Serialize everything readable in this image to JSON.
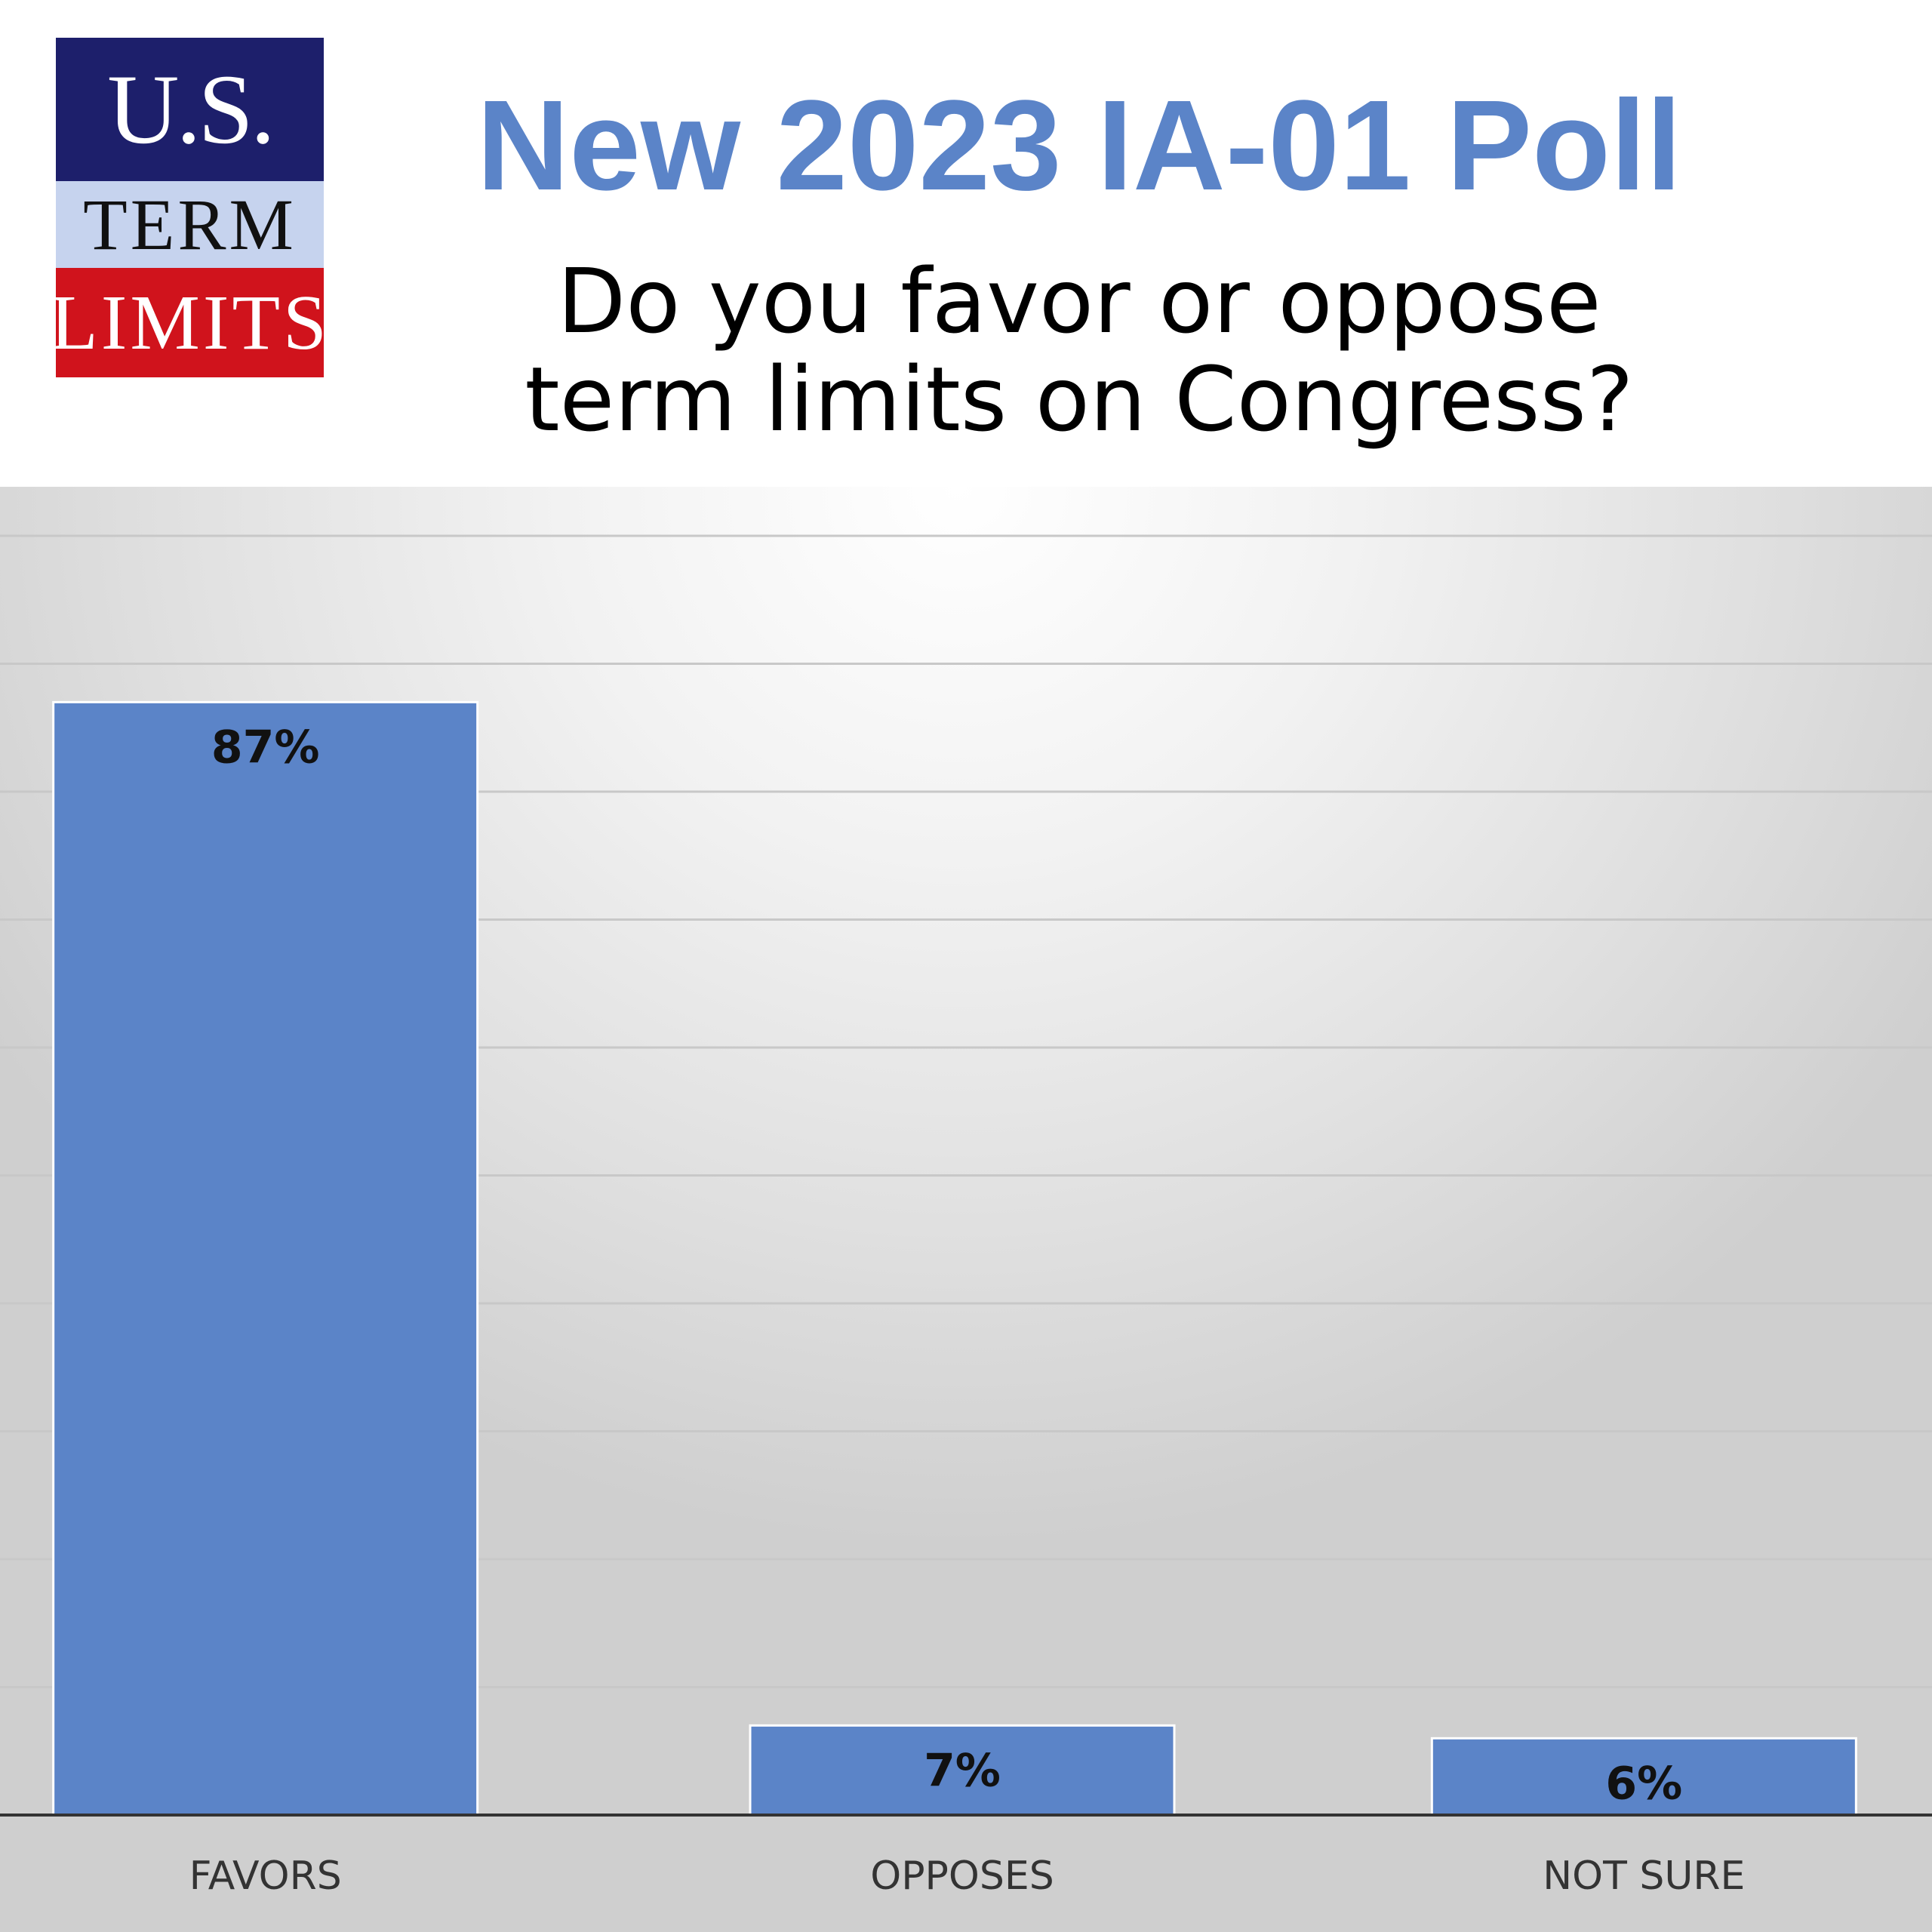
{
  "logo": {
    "line1": "U.S.",
    "line2": "TERM",
    "line3": "LIMITS"
  },
  "header": {
    "title": "New 2023 IA-01 Poll",
    "subtitle_line1": "Do you favor or oppose",
    "subtitle_line2": "term limits on Congress?"
  },
  "colors": {
    "bar": "#5b84c8",
    "title": "#5b84c8",
    "logo_navy": "#1d1f6b",
    "logo_light": "#c6d3ee",
    "logo_red": "#d0131c"
  },
  "chart_data": {
    "type": "bar",
    "title": "",
    "xlabel": "",
    "ylabel": "",
    "categories": [
      "FAVORS",
      "OPPOSES",
      "NOT SURE"
    ],
    "values": [
      87,
      7,
      6
    ],
    "value_labels": [
      "87%",
      "7%",
      "6%"
    ],
    "ylim": [
      0,
      100
    ],
    "grid": true,
    "legend": "none"
  }
}
